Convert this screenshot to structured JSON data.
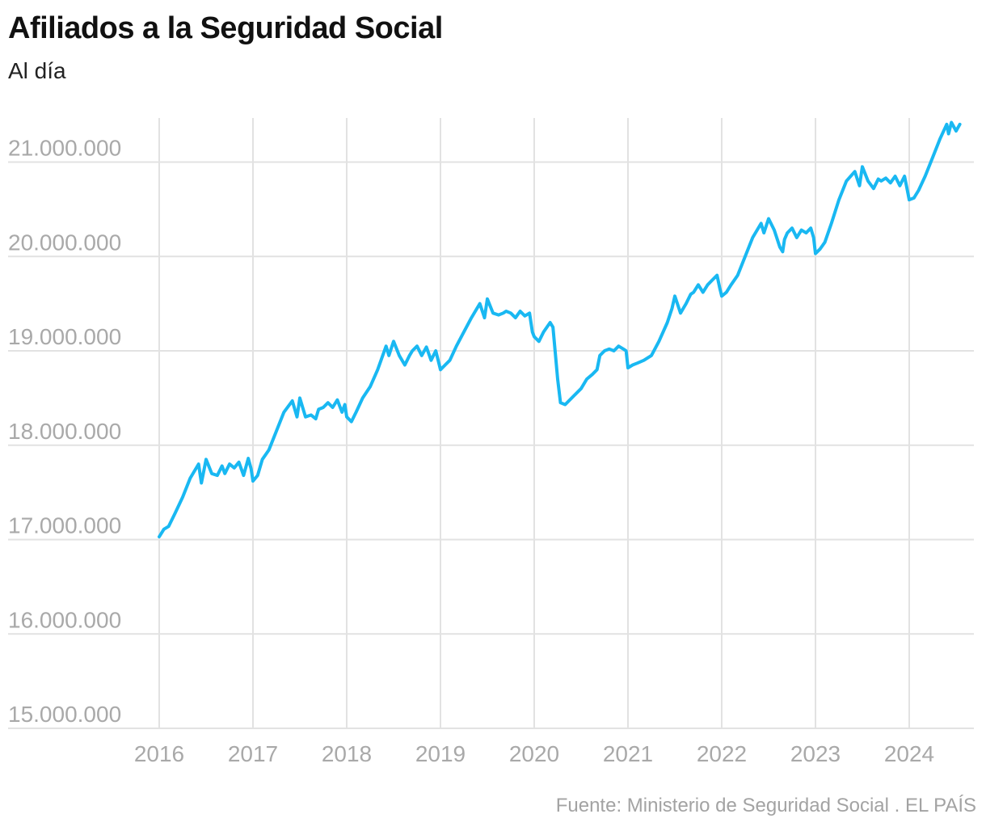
{
  "header": {
    "title": "Afiliados a la Seguridad Social",
    "subtitle": "Al día"
  },
  "footer": {
    "source": "Fuente: Ministerio de Seguridad Social . EL PAÍS"
  },
  "colors": {
    "line": "#19b8f2",
    "grid": "#e2e2e2",
    "tick_text": "#a9a9a9"
  },
  "chart_data": {
    "type": "line",
    "title": "Afiliados a la Seguridad Social",
    "subtitle": "Al día",
    "xlabel": "",
    "ylabel": "",
    "x_range": [
      2016.0,
      2024.6
    ],
    "ylim": [
      15000000,
      21500000
    ],
    "grid": true,
    "y_ticks": [
      15000000,
      16000000,
      17000000,
      18000000,
      19000000,
      20000000,
      21000000
    ],
    "y_tick_labels": [
      "15.000.000",
      "16.000.000",
      "17.000.000",
      "18.000.000",
      "19.000.000",
      "20.000.000",
      "21.000.000"
    ],
    "x_ticks": [
      2016,
      2017,
      2018,
      2019,
      2020,
      2021,
      2022,
      2023,
      2024
    ],
    "x_tick_labels": [
      "2016",
      "2017",
      "2018",
      "2019",
      "2020",
      "2021",
      "2022",
      "2023",
      "2024"
    ],
    "series": [
      {
        "name": "Afiliados",
        "x": [
          2016.0,
          2016.05,
          2016.1,
          2016.17,
          2016.25,
          2016.33,
          2016.42,
          2016.45,
          2016.5,
          2016.56,
          2016.62,
          2016.67,
          2016.7,
          2016.75,
          2016.8,
          2016.85,
          2016.9,
          2016.95,
          2016.98,
          2017.0,
          2017.05,
          2017.1,
          2017.17,
          2017.25,
          2017.33,
          2017.42,
          2017.47,
          2017.5,
          2017.56,
          2017.62,
          2017.67,
          2017.7,
          2017.75,
          2017.8,
          2017.85,
          2017.9,
          2017.95,
          2017.98,
          2018.0,
          2018.05,
          2018.1,
          2018.17,
          2018.25,
          2018.33,
          2018.42,
          2018.45,
          2018.5,
          2018.56,
          2018.62,
          2018.67,
          2018.7,
          2018.75,
          2018.8,
          2018.85,
          2018.9,
          2018.95,
          2018.98,
          2019.0,
          2019.05,
          2019.1,
          2019.17,
          2019.25,
          2019.33,
          2019.42,
          2019.47,
          2019.5,
          2019.56,
          2019.62,
          2019.67,
          2019.7,
          2019.75,
          2019.8,
          2019.85,
          2019.9,
          2019.95,
          2019.98,
          2020.0,
          2020.05,
          2020.1,
          2020.17,
          2020.2,
          2020.25,
          2020.28,
          2020.33,
          2020.42,
          2020.5,
          2020.56,
          2020.62,
          2020.67,
          2020.7,
          2020.75,
          2020.8,
          2020.85,
          2020.9,
          2020.95,
          2020.98,
          2021.0,
          2021.05,
          2021.1,
          2021.17,
          2021.25,
          2021.33,
          2021.42,
          2021.47,
          2021.5,
          2021.56,
          2021.62,
          2021.67,
          2021.7,
          2021.75,
          2021.8,
          2021.85,
          2021.9,
          2021.95,
          2021.98,
          2022.0,
          2022.05,
          2022.1,
          2022.17,
          2022.25,
          2022.33,
          2022.42,
          2022.45,
          2022.5,
          2022.56,
          2022.62,
          2022.65,
          2022.67,
          2022.7,
          2022.75,
          2022.8,
          2022.85,
          2022.9,
          2022.95,
          2022.98,
          2023.0,
          2023.05,
          2023.1,
          2023.17,
          2023.25,
          2023.33,
          2023.42,
          2023.47,
          2023.5,
          2023.56,
          2023.62,
          2023.67,
          2023.7,
          2023.75,
          2023.8,
          2023.85,
          2023.9,
          2023.95,
          2023.98,
          2024.0,
          2024.05,
          2024.1,
          2024.17,
          2024.25,
          2024.33,
          2024.4,
          2024.42,
          2024.45,
          2024.5,
          2024.54
        ],
        "values": [
          17030000,
          17110000,
          17140000,
          17280000,
          17450000,
          17650000,
          17800000,
          17600000,
          17850000,
          17700000,
          17680000,
          17780000,
          17700000,
          17800000,
          17760000,
          17820000,
          17680000,
          17860000,
          17750000,
          17620000,
          17680000,
          17850000,
          17950000,
          18150000,
          18350000,
          18470000,
          18300000,
          18500000,
          18300000,
          18320000,
          18280000,
          18380000,
          18400000,
          18450000,
          18400000,
          18480000,
          18350000,
          18430000,
          18300000,
          18250000,
          18350000,
          18500000,
          18620000,
          18800000,
          19050000,
          18950000,
          19100000,
          18950000,
          18850000,
          18950000,
          19000000,
          19050000,
          18950000,
          19040000,
          18900000,
          19000000,
          18880000,
          18800000,
          18850000,
          18900000,
          19050000,
          19200000,
          19350000,
          19500000,
          19350000,
          19550000,
          19400000,
          19380000,
          19400000,
          19420000,
          19400000,
          19350000,
          19420000,
          19370000,
          19400000,
          19200000,
          19150000,
          19100000,
          19200000,
          19300000,
          19250000,
          18700000,
          18450000,
          18430000,
          18520000,
          18600000,
          18700000,
          18750000,
          18800000,
          18950000,
          19000000,
          19020000,
          19000000,
          19050000,
          19020000,
          19000000,
          18820000,
          18850000,
          18870000,
          18900000,
          18950000,
          19100000,
          19300000,
          19450000,
          19580000,
          19400000,
          19500000,
          19600000,
          19620000,
          19700000,
          19620000,
          19700000,
          19750000,
          19800000,
          19660000,
          19580000,
          19620000,
          19700000,
          19800000,
          20000000,
          20200000,
          20350000,
          20250000,
          20400000,
          20280000,
          20100000,
          20050000,
          20180000,
          20250000,
          20300000,
          20200000,
          20280000,
          20250000,
          20300000,
          20200000,
          20030000,
          20080000,
          20150000,
          20350000,
          20600000,
          20800000,
          20900000,
          20750000,
          20950000,
          20800000,
          20720000,
          20820000,
          20800000,
          20830000,
          20780000,
          20850000,
          20750000,
          20850000,
          20700000,
          20600000,
          20620000,
          20700000,
          20850000,
          21050000,
          21250000,
          21400000,
          21300000,
          21420000,
          21330000,
          21400000
        ]
      }
    ]
  }
}
